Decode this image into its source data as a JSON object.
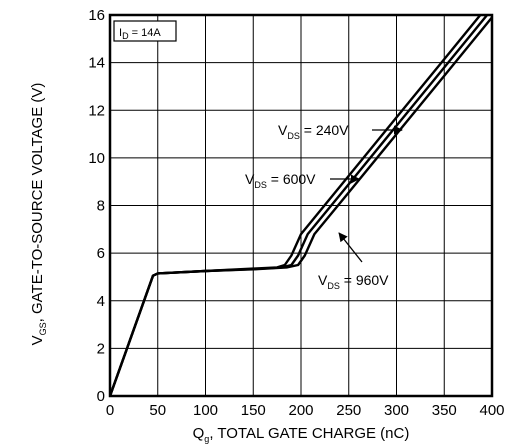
{
  "chart_data": {
    "type": "line",
    "xlabel": {
      "main": "Q",
      "sub": "g",
      "rest": ", TOTAL GATE CHARGE (nC)"
    },
    "ylabel": {
      "main": "V",
      "sub": "GS",
      "rest": ", GATE-TO-SOURCE  VOLTAGE (V)"
    },
    "xlim": [
      0,
      400
    ],
    "ylim": [
      0,
      16
    ],
    "x_ticks": [
      "0",
      "50",
      "100",
      "150",
      "200",
      "250",
      "300",
      "350",
      "400"
    ],
    "y_ticks": [
      "0",
      "2",
      "4",
      "6",
      "8",
      "10",
      "12",
      "14",
      "16"
    ],
    "grid": true,
    "condition_box": {
      "main": "I",
      "sub": "D",
      "rest": " = 14A"
    },
    "series": [
      {
        "name": {
          "main": "V",
          "sub": "DS",
          "rest": " = 240V"
        },
        "points": [
          [
            0,
            0
          ],
          [
            45,
            5.05
          ],
          [
            50,
            5.15
          ],
          [
            100,
            5.25
          ],
          [
            150,
            5.35
          ],
          [
            175,
            5.4
          ],
          [
            183,
            5.5
          ],
          [
            190,
            5.9
          ],
          [
            200,
            6.8
          ],
          [
            250,
            9.25
          ],
          [
            300,
            11.7
          ],
          [
            350,
            14.15
          ],
          [
            400,
            16.6
          ]
        ]
      },
      {
        "name": {
          "main": "V",
          "sub": "DS",
          "rest": " = 600V"
        },
        "points": [
          [
            0,
            0
          ],
          [
            45,
            5.05
          ],
          [
            50,
            5.15
          ],
          [
            100,
            5.25
          ],
          [
            150,
            5.33
          ],
          [
            180,
            5.4
          ],
          [
            190,
            5.5
          ],
          [
            197,
            5.9
          ],
          [
            207,
            6.8
          ],
          [
            250,
            8.9
          ],
          [
            300,
            11.35
          ],
          [
            350,
            13.8
          ],
          [
            400,
            16.25
          ]
        ]
      },
      {
        "name": {
          "main": "V",
          "sub": "DS",
          "rest": " = 960V"
        },
        "points": [
          [
            0,
            0
          ],
          [
            45,
            5.05
          ],
          [
            50,
            5.15
          ],
          [
            100,
            5.25
          ],
          [
            150,
            5.32
          ],
          [
            185,
            5.4
          ],
          [
            197,
            5.5
          ],
          [
            204,
            5.9
          ],
          [
            214,
            6.8
          ],
          [
            250,
            8.55
          ],
          [
            300,
            11.0
          ],
          [
            350,
            13.45
          ],
          [
            400,
            15.9
          ]
        ]
      }
    ]
  }
}
